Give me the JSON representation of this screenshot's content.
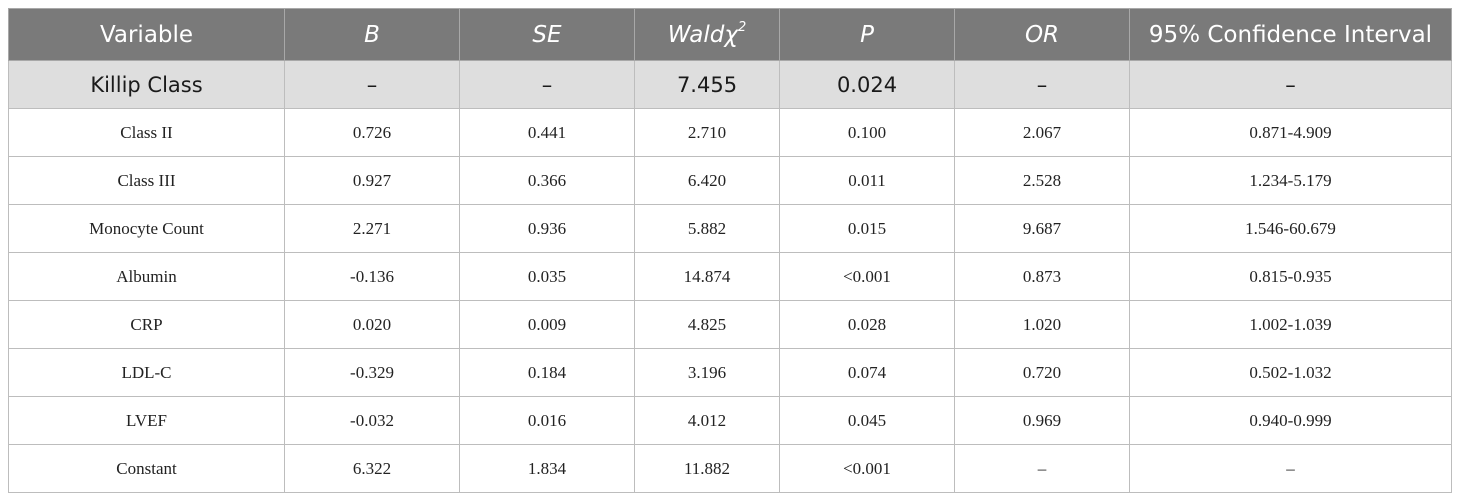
{
  "table": {
    "headers": {
      "variable": "Variable",
      "b": "B",
      "se": "SE",
      "wald": "Wald",
      "wald_symbol": "χ",
      "wald_sup": "2",
      "p": "P",
      "or": "OR",
      "ci": "95% Confidence Interval"
    },
    "group": {
      "name": "Killip Class",
      "b": "–",
      "se": "–",
      "wald": "7.455",
      "p": "0.024",
      "or": "–",
      "ci": "–"
    },
    "rows": [
      {
        "variable": "Class II",
        "b": "0.726",
        "se": "0.441",
        "wald": "2.710",
        "p": "0.100",
        "or": "2.067",
        "ci": "0.871-4.909"
      },
      {
        "variable": "Class III",
        "b": "0.927",
        "se": "0.366",
        "wald": "6.420",
        "p": "0.011",
        "or": "2.528",
        "ci": "1.234-5.179"
      },
      {
        "variable": "Monocyte Count",
        "b": "2.271",
        "se": "0.936",
        "wald": "5.882",
        "p": "0.015",
        "or": "9.687",
        "ci": "1.546-60.679"
      },
      {
        "variable": "Albumin",
        "b": "-0.136",
        "se": "0.035",
        "wald": "14.874",
        "p": "<0.001",
        "or": "0.873",
        "ci": "0.815-0.935"
      },
      {
        "variable": "CRP",
        "b": "0.020",
        "se": "0.009",
        "wald": "4.825",
        "p": "0.028",
        "or": "1.020",
        "ci": "1.002-1.039"
      },
      {
        "variable": "LDL-C",
        "b": "-0.329",
        "se": "0.184",
        "wald": "3.196",
        "p": "0.074",
        "or": "0.720",
        "ci": "0.502-1.032"
      },
      {
        "variable": "LVEF",
        "b": "-0.032",
        "se": "0.016",
        "wald": "4.012",
        "p": "0.045",
        "or": "0.969",
        "ci": "0.940-0.999"
      },
      {
        "variable": "Constant",
        "b": "6.322",
        "se": "1.834",
        "wald": "11.882",
        "p": "<0.001",
        "or": "–",
        "ci": "–"
      }
    ]
  }
}
